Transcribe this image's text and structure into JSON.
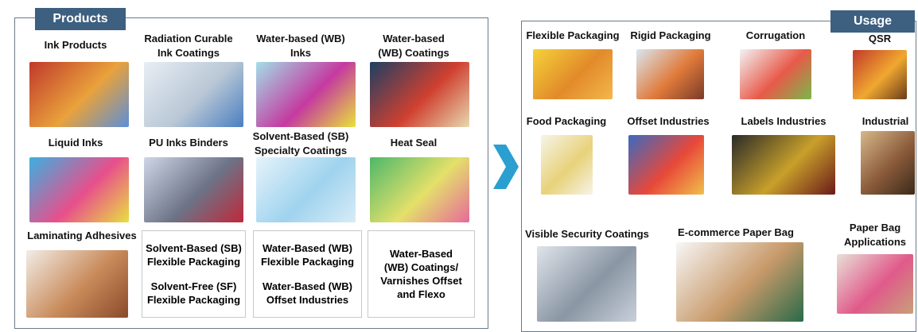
{
  "products": {
    "title": "Products",
    "items": [
      {
        "label": [
          "Ink Products"
        ]
      },
      {
        "label": [
          "Radiation Curable",
          "Ink Coatings"
        ]
      },
      {
        "label": [
          "Water-based (WB)",
          "Inks"
        ]
      },
      {
        "label": [
          "Water-based",
          "(WB) Coatings"
        ]
      },
      {
        "label": [
          "Liquid Inks"
        ]
      },
      {
        "label": [
          "PU Inks Binders"
        ]
      },
      {
        "label": [
          "Solvent-Based (SB)",
          "Specialty Coatings"
        ]
      },
      {
        "label": [
          "Heat Seal"
        ]
      },
      {
        "label": [
          "Laminating Adhesives"
        ]
      }
    ],
    "boxes": [
      [
        [
          "Solvent-Based (SB)",
          "Flexible Packaging"
        ],
        [
          "Solvent-Free (SF)",
          "Flexible Packaging"
        ]
      ],
      [
        [
          "Water-Based (WB)",
          "Flexible Packaging"
        ],
        [
          "Water-Based (WB)",
          "Offset Industries"
        ]
      ],
      [
        [
          "Water-Based",
          "(WB) Coatings/",
          "Varnishes Offset",
          "and Flexo"
        ]
      ]
    ]
  },
  "usage": {
    "title": "Usage",
    "items": [
      {
        "label": [
          "Flexible Packaging"
        ]
      },
      {
        "label": [
          "Rigid Packaging"
        ]
      },
      {
        "label": [
          "Corrugation"
        ]
      },
      {
        "label": [
          "QSR"
        ]
      },
      {
        "label": [
          "Food Packaging"
        ]
      },
      {
        "label": [
          "Offset Industries"
        ]
      },
      {
        "label": [
          "Labels Industries"
        ]
      },
      {
        "label": [
          "Industrial"
        ]
      },
      {
        "label": [
          "Visible Security Coatings"
        ]
      },
      {
        "label": [
          "E-commerce Paper Bag"
        ]
      },
      {
        "label": [
          "Paper Bag",
          "Applications"
        ]
      }
    ]
  }
}
